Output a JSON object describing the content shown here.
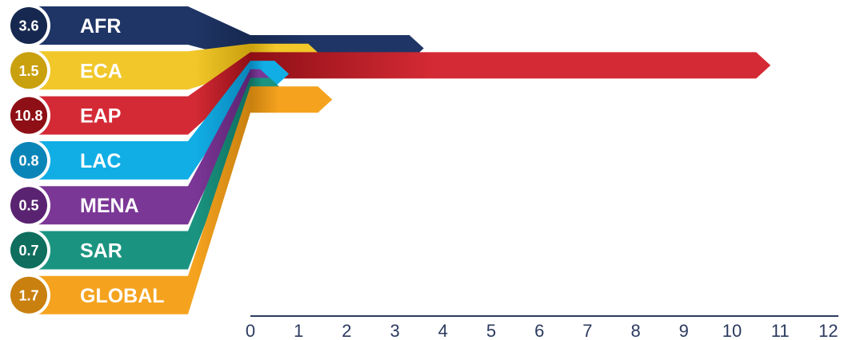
{
  "chart_data": {
    "type": "bar",
    "orientation": "horizontal",
    "categories": [
      "AFR",
      "ECA",
      "EAP",
      "LAC",
      "MENA",
      "SAR",
      "GLOBAL"
    ],
    "values": [
      3.6,
      1.5,
      10.8,
      0.8,
      0.5,
      0.7,
      1.7
    ],
    "value_labels": [
      "3.6",
      "1.5",
      "10.8",
      "0.8",
      "0.5",
      "0.7",
      "1.7"
    ],
    "colors": [
      "#1f3566",
      "#f1c72a",
      "#d42a35",
      "#11aee6",
      "#7b3796",
      "#1a9480",
      "#f5a31f"
    ],
    "dark_colors": [
      "#16284f",
      "#c9a00e",
      "#8e0f15",
      "#0a85b8",
      "#5a2371",
      "#0f6e5e",
      "#c9800f"
    ],
    "xlim": [
      0,
      12
    ],
    "x_ticks": [
      "0",
      "1",
      "2",
      "3",
      "4",
      "5",
      "6",
      "7",
      "8",
      "9",
      "10",
      "11",
      "12"
    ],
    "axis_color": "#2b3a5e",
    "grid": false,
    "title": "",
    "xlabel": "",
    "ylabel": ""
  }
}
